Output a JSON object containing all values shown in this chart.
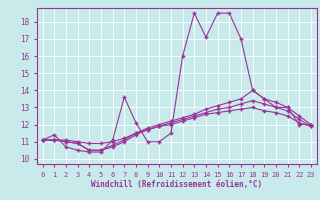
{
  "xlabel": "Windchill (Refroidissement éolien,°C)",
  "background_color": "#c8eaea",
  "grid_color": "#ffffff",
  "line_color": "#993399",
  "xlim": [
    -0.5,
    23.5
  ],
  "ylim": [
    9.7,
    18.8
  ],
  "yticks": [
    10,
    11,
    12,
    13,
    14,
    15,
    16,
    17,
    18
  ],
  "xticks": [
    0,
    1,
    2,
    3,
    4,
    5,
    6,
    7,
    8,
    9,
    10,
    11,
    12,
    13,
    14,
    15,
    16,
    17,
    18,
    19,
    20,
    21,
    22,
    23
  ],
  "line1_x": [
    0,
    1,
    2,
    3,
    4,
    5,
    6,
    7,
    8,
    9,
    10,
    11,
    12,
    13,
    14,
    15,
    16,
    17,
    18,
    19,
    20,
    21,
    22,
    23
  ],
  "line1_y": [
    11.1,
    11.4,
    10.7,
    10.5,
    10.4,
    10.4,
    11.1,
    13.6,
    12.1,
    11.0,
    11.0,
    11.5,
    16.0,
    18.5,
    17.1,
    18.5,
    18.5,
    17.0,
    14.0,
    13.5,
    13.0,
    13.0,
    12.0,
    12.0
  ],
  "line2_x": [
    0,
    1,
    2,
    3,
    4,
    5,
    6,
    7,
    8,
    9,
    10,
    11,
    12,
    13,
    14,
    15,
    16,
    17,
    18,
    19,
    20,
    21,
    22,
    23
  ],
  "line2_y": [
    11.1,
    11.1,
    11.0,
    10.9,
    10.5,
    10.5,
    10.8,
    11.1,
    11.5,
    11.8,
    12.0,
    12.2,
    12.4,
    12.6,
    12.9,
    13.1,
    13.3,
    13.5,
    14.0,
    13.5,
    13.3,
    13.0,
    12.5,
    12.0
  ],
  "line3_x": [
    0,
    1,
    2,
    3,
    4,
    5,
    6,
    7,
    8,
    9,
    10,
    11,
    12,
    13,
    14,
    15,
    16,
    17,
    18,
    19,
    20,
    21,
    22,
    23
  ],
  "line3_y": [
    11.1,
    11.1,
    11.0,
    10.9,
    10.5,
    10.5,
    10.7,
    11.0,
    11.4,
    11.7,
    11.9,
    12.1,
    12.3,
    12.5,
    12.7,
    12.9,
    13.0,
    13.2,
    13.4,
    13.2,
    13.0,
    12.8,
    12.3,
    11.9
  ],
  "line4_x": [
    0,
    1,
    2,
    3,
    4,
    5,
    6,
    7,
    8,
    9,
    10,
    11,
    12,
    13,
    14,
    15,
    16,
    17,
    18,
    19,
    20,
    21,
    22,
    23
  ],
  "line4_y": [
    11.1,
    11.1,
    11.1,
    11.0,
    10.9,
    10.9,
    11.0,
    11.2,
    11.5,
    11.7,
    11.9,
    12.0,
    12.2,
    12.4,
    12.6,
    12.7,
    12.8,
    12.9,
    13.0,
    12.8,
    12.7,
    12.5,
    12.1,
    11.9
  ]
}
